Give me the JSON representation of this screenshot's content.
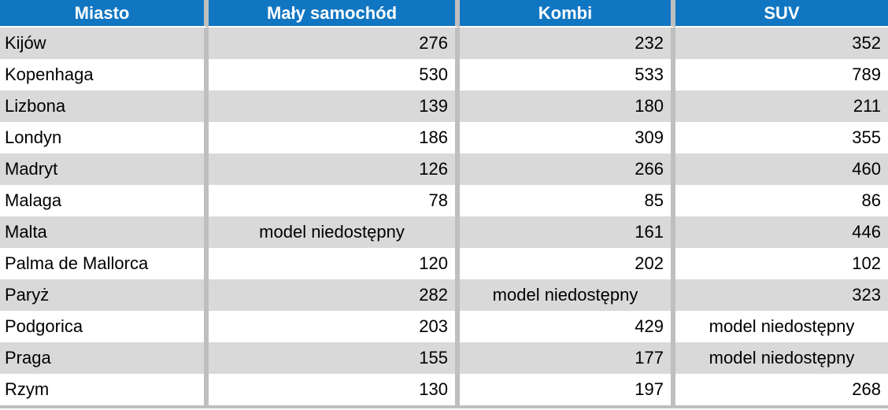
{
  "colors": {
    "header_bg": "#1176C2",
    "header_text": "#FFFFFF",
    "row_stripe": "#D9D9D9",
    "row_plain": "#FFFFFF",
    "separator": "#BFBFBF",
    "cell_text": "#000000"
  },
  "chart_data": {
    "type": "table",
    "columns": [
      "Miasto",
      "Mały samochód",
      "Kombi",
      "SUV"
    ],
    "na_label": "model niedostępny",
    "rows": [
      {
        "city": "Kijów",
        "values": [
          276,
          232,
          352
        ]
      },
      {
        "city": "Kopenhaga",
        "values": [
          530,
          533,
          789
        ]
      },
      {
        "city": "Lizbona",
        "values": [
          139,
          180,
          211
        ]
      },
      {
        "city": "Londyn",
        "values": [
          186,
          309,
          355
        ]
      },
      {
        "city": "Madryt",
        "values": [
          126,
          266,
          460
        ]
      },
      {
        "city": "Malaga",
        "values": [
          78,
          85,
          86
        ]
      },
      {
        "city": "Malta",
        "values": [
          null,
          161,
          446
        ]
      },
      {
        "city": "Palma de Mallorca",
        "values": [
          120,
          202,
          102
        ]
      },
      {
        "city": "Paryż",
        "values": [
          282,
          null,
          323
        ]
      },
      {
        "city": "Podgorica",
        "values": [
          203,
          429,
          null
        ]
      },
      {
        "city": "Praga",
        "values": [
          155,
          177,
          null
        ]
      },
      {
        "city": "Rzym",
        "values": [
          130,
          197,
          268
        ]
      }
    ]
  }
}
